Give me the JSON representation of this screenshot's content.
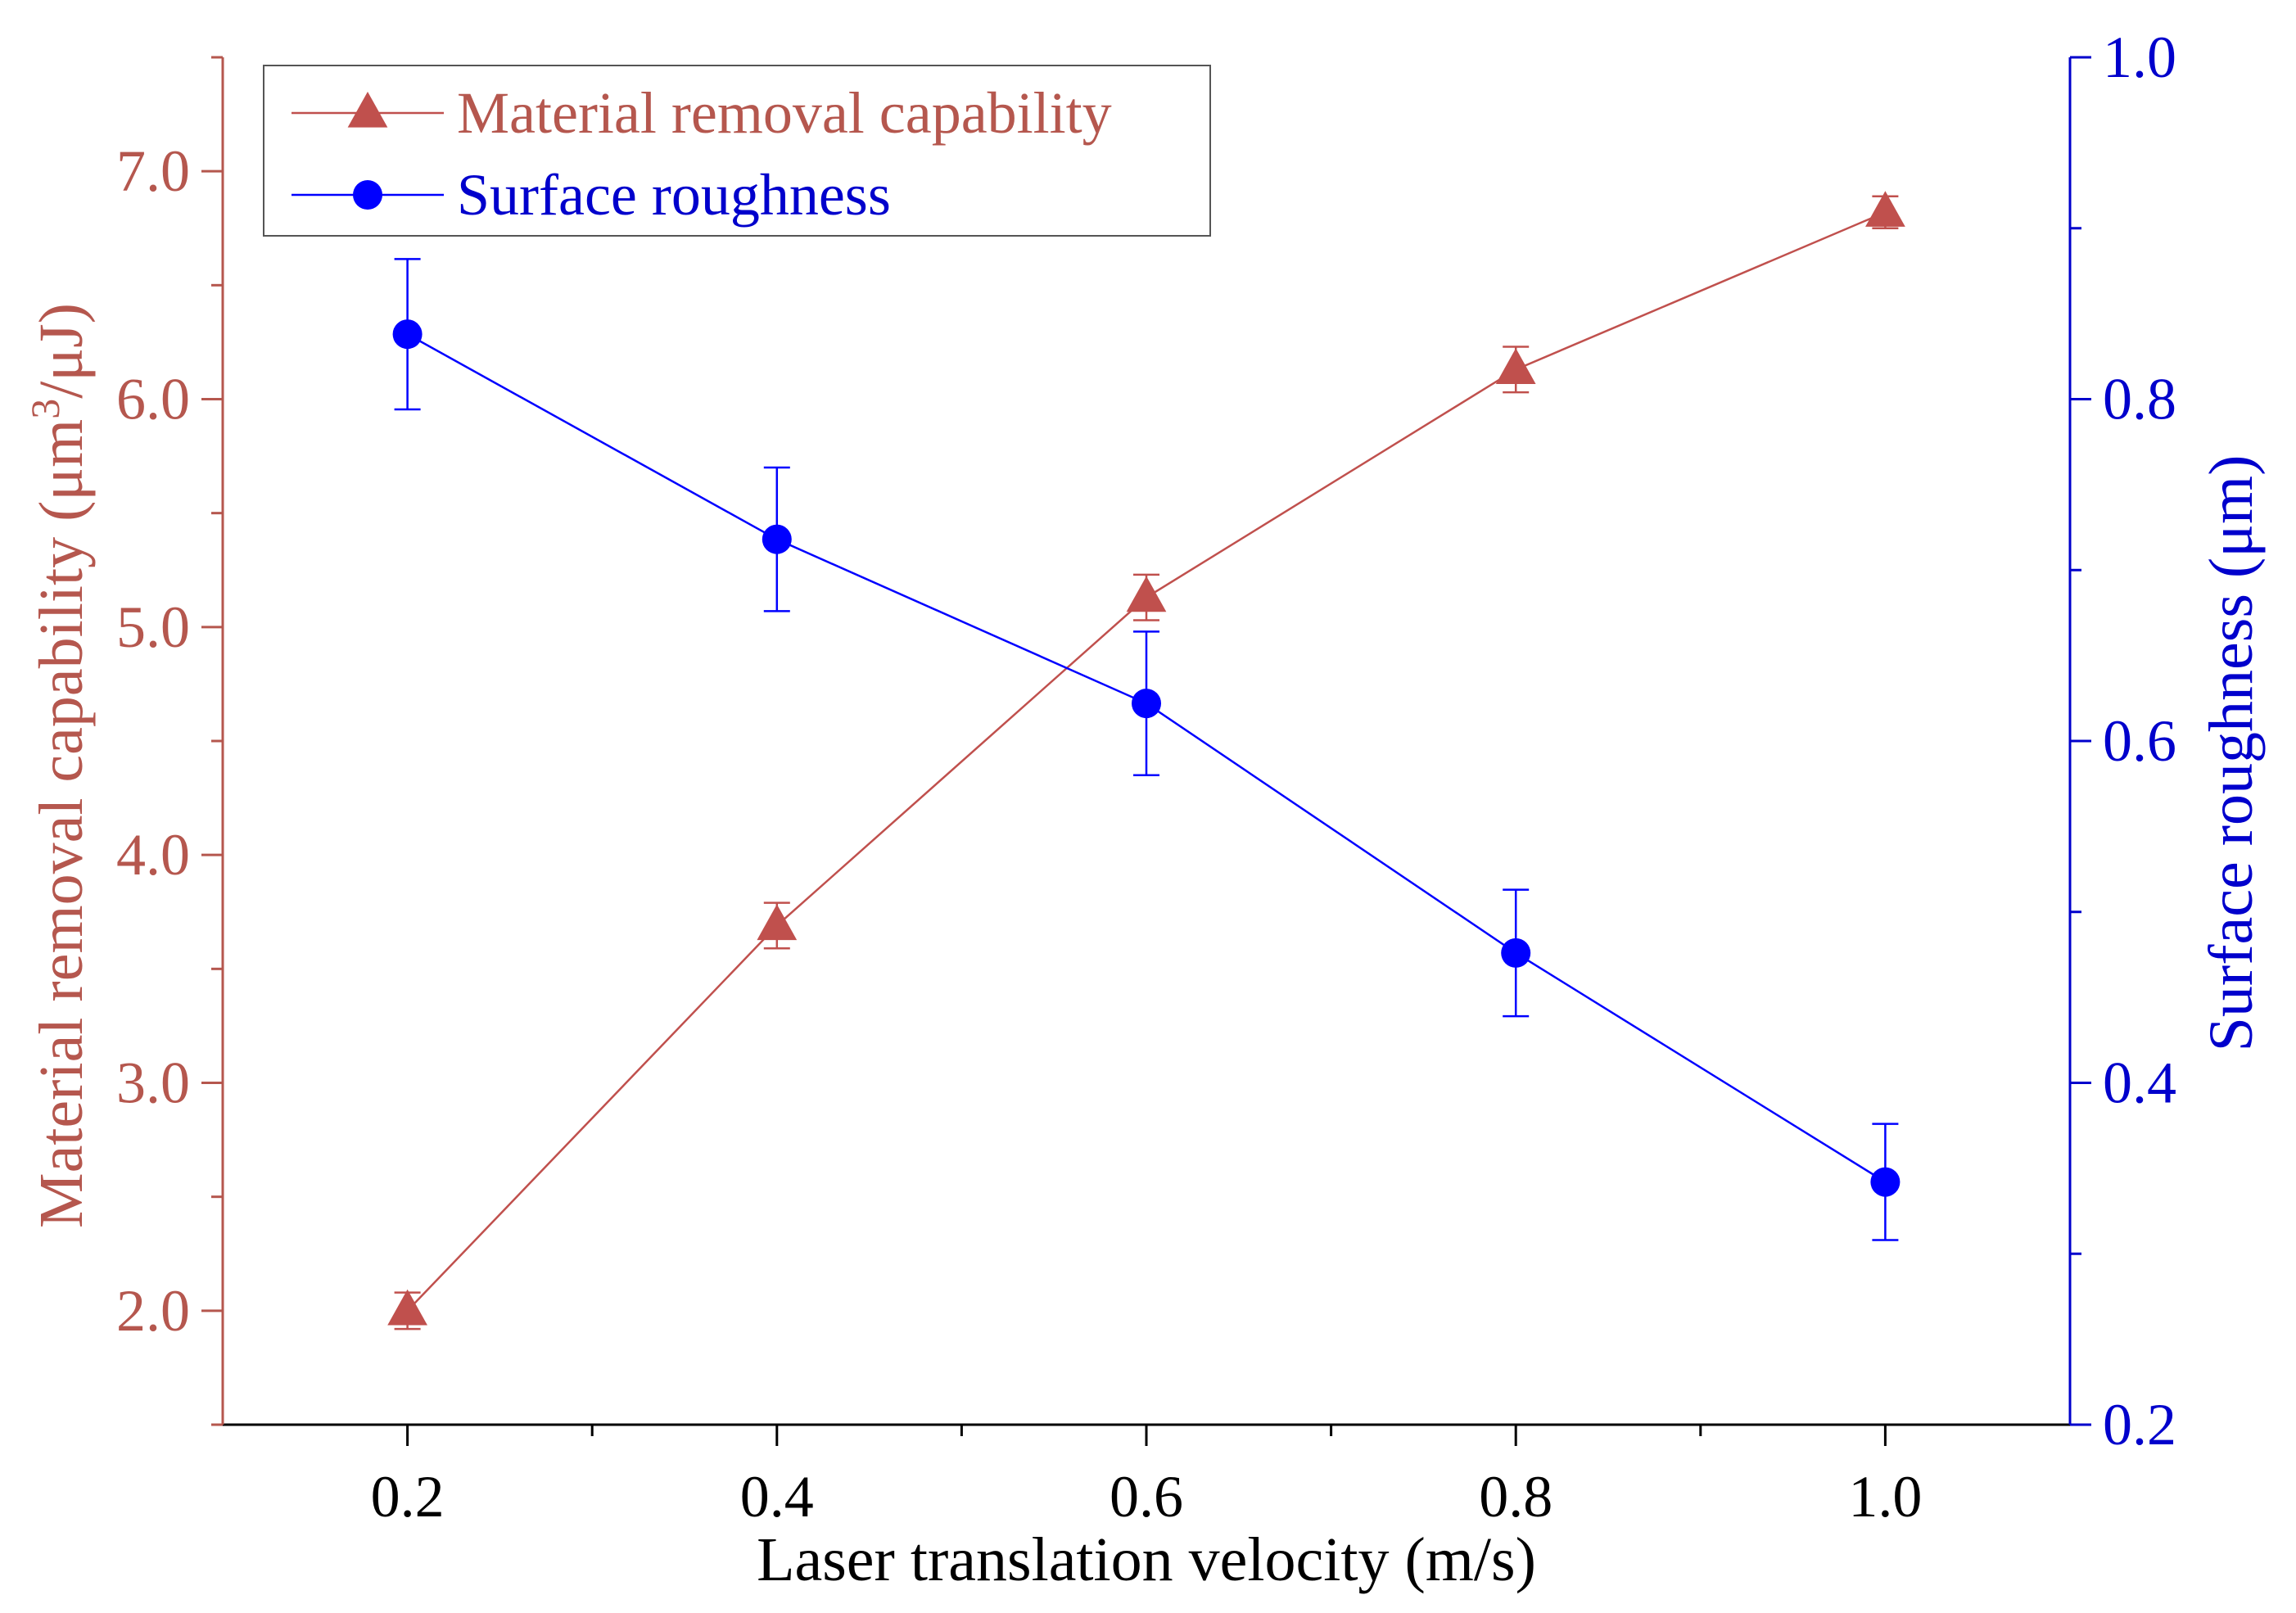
{
  "chart_data": {
    "type": "line",
    "title": "",
    "xlabel": "Laser translation velocity (m/s)",
    "ylabel_left": {
      "prefix": "Material removal capability (μm",
      "sup": "3",
      "suffix": "/μJ)"
    },
    "ylabel_right": "Surface roughness (μm)",
    "x_ticks": [
      0.2,
      0.4,
      0.6,
      0.8,
      1.0
    ],
    "x_tick_labels": [
      "0.2",
      "0.4",
      "0.6",
      "0.8",
      "1.0"
    ],
    "xlim": [
      0.1,
      1.1
    ],
    "y_left_ticks": [
      2.0,
      3.0,
      4.0,
      5.0,
      6.0,
      7.0
    ],
    "y_left_tick_labels": [
      "2.0",
      "3.0",
      "4.0",
      "5.0",
      "6.0",
      "7.0"
    ],
    "ylim_left": [
      1.5,
      7.5
    ],
    "y_right_ticks": [
      0.2,
      0.4,
      0.6,
      0.8,
      1.0
    ],
    "y_right_tick_labels": [
      "0.2",
      "0.4",
      "0.6",
      "0.8",
      "1.0"
    ],
    "ylim_right": [
      0.2,
      1.0
    ],
    "legend_position": "top-left",
    "series": [
      {
        "name": "Material removal capability",
        "axis": "left",
        "marker": "triangle",
        "color": "#c0504d",
        "x": [
          0.2,
          0.4,
          0.6,
          0.8,
          1.0
        ],
        "values": [
          2.0,
          3.69,
          5.13,
          6.13,
          6.82
        ],
        "errors": [
          0.08,
          0.1,
          0.1,
          0.1,
          0.07
        ]
      },
      {
        "name": "Surface roughness",
        "axis": "right",
        "marker": "circle",
        "color": "#0000ff",
        "x": [
          0.2,
          0.4,
          0.6,
          0.8,
          1.0
        ],
        "values": [
          0.838,
          0.718,
          0.622,
          0.476,
          0.342
        ],
        "errors": [
          0.044,
          0.042,
          0.042,
          0.037,
          0.034
        ]
      }
    ],
    "colors": {
      "left_axis": "#b5574e",
      "right_axis": "#0000cc",
      "frame": "#000000",
      "legend_border": "#555555"
    }
  }
}
